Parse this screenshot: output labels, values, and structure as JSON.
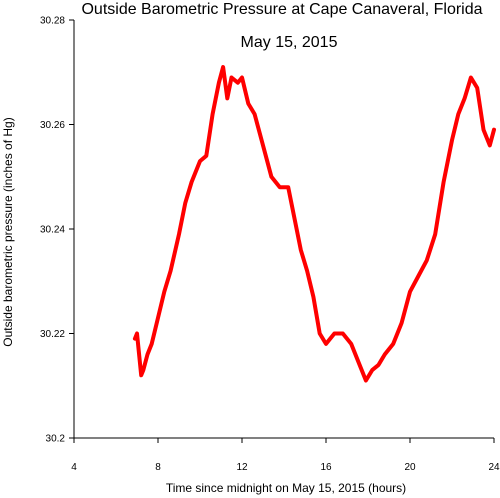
{
  "chart_data": {
    "type": "line",
    "title": "Outside Barometric Pressure at Cape Canaveral, Florida",
    "subtitle": "May 15, 2015",
    "xlabel": "Time since midnight on May 15, 2015 (hours)",
    "ylabel": "Outside barometric pressure (inches of Hg)",
    "xlim": [
      4,
      24
    ],
    "ylim": [
      30.2,
      30.28
    ],
    "xticks": [
      4,
      8,
      12,
      16,
      20,
      24
    ],
    "yticks": [
      30.2,
      30.22,
      30.24,
      30.26,
      30.28
    ],
    "xtick_labels": [
      "4",
      "8",
      "12",
      "16",
      "20",
      "24"
    ],
    "ytick_labels": [
      "30.2",
      "30.22",
      "30.24",
      "30.26",
      "30.28"
    ],
    "grid": false,
    "series": [
      {
        "color": "#ff0000",
        "x": [
          6.9,
          7.0,
          7.1,
          7.2,
          7.3,
          7.5,
          7.7,
          8.0,
          8.3,
          8.6,
          9.0,
          9.3,
          9.6,
          10.0,
          10.3,
          10.6,
          10.9,
          11.1,
          11.3,
          11.5,
          11.8,
          12.0,
          12.3,
          12.6,
          13.0,
          13.4,
          13.8,
          14.2,
          14.5,
          14.8,
          15.1,
          15.4,
          15.7,
          16.0,
          16.4,
          16.8,
          17.2,
          17.6,
          17.9,
          18.2,
          18.5,
          18.8,
          19.2,
          19.6,
          20.0,
          20.4,
          20.8,
          21.2,
          21.6,
          22.0,
          22.3,
          22.6,
          22.9,
          23.2,
          23.5,
          23.8,
          24.0
        ],
        "values": [
          30.219,
          30.22,
          30.216,
          30.212,
          30.213,
          30.216,
          30.218,
          30.223,
          30.228,
          30.232,
          30.239,
          30.245,
          30.249,
          30.253,
          30.254,
          30.262,
          30.268,
          30.271,
          30.265,
          30.269,
          30.268,
          30.269,
          30.264,
          30.262,
          30.256,
          30.25,
          30.248,
          30.248,
          30.242,
          30.236,
          30.232,
          30.227,
          30.22,
          30.218,
          30.22,
          30.22,
          30.218,
          30.214,
          30.211,
          30.213,
          30.214,
          30.216,
          30.218,
          30.222,
          30.228,
          30.231,
          30.234,
          30.239,
          30.249,
          30.257,
          30.262,
          30.265,
          30.269,
          30.267,
          30.259,
          30.256,
          30.259
        ]
      }
    ]
  }
}
